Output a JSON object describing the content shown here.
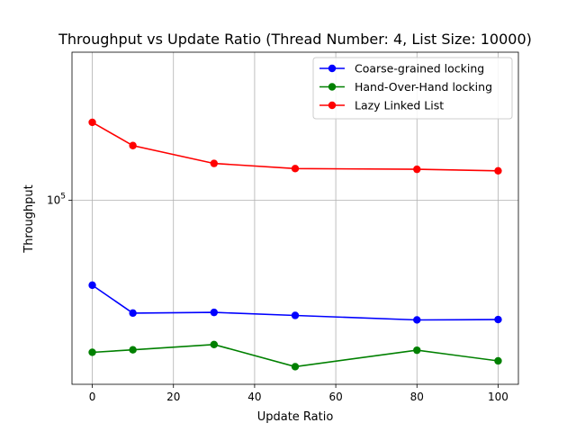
{
  "chart_data": {
    "type": "line",
    "title": "Throughput vs Update Ratio (Thread Number: 4, List Size: 10000)",
    "xlabel": "Update Ratio",
    "ylabel": "Throughput",
    "x": [
      0,
      10,
      30,
      50,
      80,
      100
    ],
    "xlim": [
      -5,
      105
    ],
    "ylim": [
      35500,
      230000
    ],
    "yscale": "log",
    "x_ticks": [
      0,
      20,
      40,
      60,
      80,
      100
    ],
    "y_ticks": [
      {
        "value": 100000,
        "base": "10",
        "exp": "5"
      }
    ],
    "grid": true,
    "legend_position": "top-right",
    "series": [
      {
        "name": "Coarse-grained locking",
        "color": "#0000ff",
        "values": [
          62000,
          53000,
          53200,
          52300,
          51000,
          51100
        ]
      },
      {
        "name": "Hand-Over-Hand locking",
        "color": "#008000",
        "values": [
          42500,
          43100,
          44400,
          39200,
          43000,
          40500
        ]
      },
      {
        "name": "Lazy Linked List",
        "color": "#ff0000",
        "values": [
          155000,
          136000,
          123000,
          119500,
          119000,
          118000
        ]
      }
    ]
  }
}
